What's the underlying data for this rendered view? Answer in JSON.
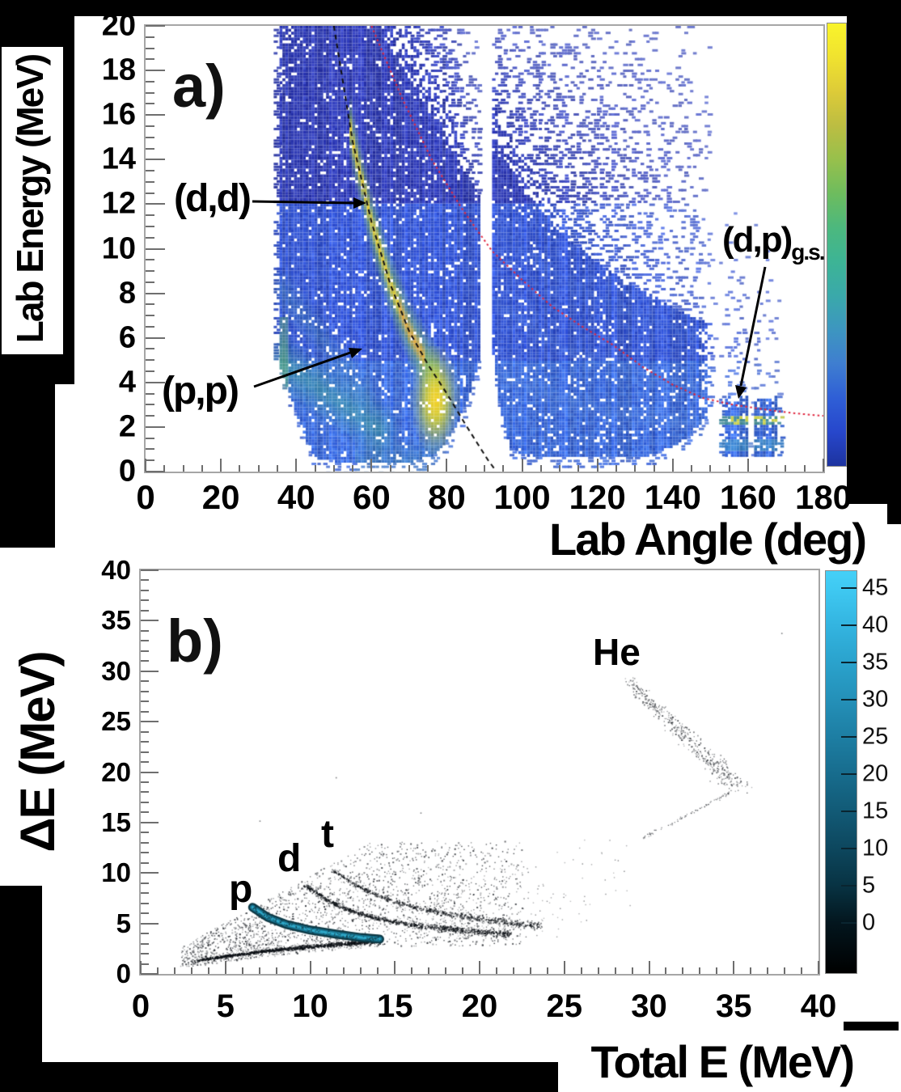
{
  "panel_a": {
    "label": "a)",
    "x_axis": {
      "title": "Lab Angle (deg)",
      "min": 0,
      "max": 180,
      "major_step": 20,
      "minor_step": 5,
      "ticks": [
        "0",
        "20",
        "40",
        "60",
        "80",
        "100",
        "120",
        "140",
        "160",
        "180"
      ]
    },
    "y_axis": {
      "title": "Lab Energy (MeV)",
      "min": 0,
      "max": 20,
      "major_step": 2,
      "minor_step": 0.5,
      "ticks": [
        "20",
        "18",
        "16",
        "14",
        "12",
        "10",
        "8",
        "6",
        "4",
        "2",
        "0"
      ]
    },
    "annotations": {
      "dd": "(d,d)",
      "pp": "(p,p)",
      "dp": "(d,p)",
      "dp_sub": "g.s."
    },
    "colorbar": {
      "colors": [
        "#f9f42b",
        "#f0e22f",
        "#ddcb38",
        "#bcbd42",
        "#97c04c",
        "#6dbc5e",
        "#4cb87e",
        "#3db495",
        "#3aa9aa",
        "#3d96c0",
        "#3f7ed0",
        "#2f5fd6",
        "#2747cc",
        "#1d339f"
      ]
    }
  },
  "panel_b": {
    "label": "b)",
    "x_axis": {
      "title": "Total E (MeV)",
      "min": 0,
      "max": 40,
      "major_step": 5,
      "minor_step": 1,
      "ticks": [
        "0",
        "5",
        "10",
        "15",
        "20",
        "25",
        "30",
        "35",
        "40"
      ]
    },
    "y_axis": {
      "title": "ΔE (MeV)",
      "min": 0,
      "max": 40,
      "major_step": 5,
      "minor_step": 1,
      "ticks": [
        "40",
        "35",
        "30",
        "25",
        "20",
        "15",
        "10",
        "5",
        "0"
      ]
    },
    "particles": {
      "p": "p",
      "d": "d",
      "t": "t",
      "he": "He"
    },
    "colorbar": {
      "labels": [
        "45",
        "40",
        "35",
        "30",
        "25",
        "20",
        "15",
        "10",
        "5",
        "0"
      ],
      "colors": [
        "#45d0f7",
        "#3fc9f2",
        "#33b4e0",
        "#2aa2cc",
        "#2490b8",
        "#1d7ea3",
        "#176c8d",
        "#125a76",
        "#0d475e",
        "#083343",
        "#03161e",
        "#000000"
      ]
    }
  },
  "chart_data": [
    {
      "type": "heatmap",
      "title": "deuteron-beam particle spectrum",
      "xlabel": "Lab Angle (deg)",
      "ylabel": "Lab Energy (MeV)",
      "xlim": [
        0,
        180
      ],
      "ylim": [
        0,
        20
      ],
      "grid": false,
      "colormap": "blue(low) to yellow(high)",
      "curves": {
        "dd_kinematic": {
          "style": "dashed-black",
          "label": "(d,d)",
          "points": [
            [
              50,
              20
            ],
            [
              55,
              14.8
            ],
            [
              60,
              11.2
            ],
            [
              65,
              8.4
            ],
            [
              70,
              6.3
            ],
            [
              75,
              4.8
            ],
            [
              80,
              3.5
            ],
            [
              85,
              2.1
            ],
            [
              88,
              1.3
            ],
            [
              91,
              0.5
            ],
            [
              93,
              0.05
            ]
          ]
        },
        "dp_gs_kinematic": {
          "style": "dotted-red",
          "label": "(d,p) g.s.",
          "points": [
            [
              60,
              20
            ],
            [
              68,
              16.8
            ],
            [
              76,
              14.0
            ],
            [
              84,
              11.8
            ],
            [
              92,
              9.9
            ],
            [
              100,
              8.6
            ],
            [
              108,
              7.4
            ],
            [
              116,
              6.5
            ],
            [
              124,
              5.7
            ],
            [
              132,
              4.7
            ],
            [
              140,
              3.9
            ],
            [
              148,
              3.3
            ],
            [
              156,
              3.0
            ],
            [
              164,
              2.8
            ],
            [
              172,
              2.62
            ],
            [
              180,
              2.5
            ]
          ]
        }
      },
      "regions": {
        "left_blob": {
          "theta_range": [
            34.2,
            89.3
          ],
          "bottom_edge": [
            [
              35,
              5.0
            ],
            [
              38,
              3.6
            ],
            [
              41,
              2.2
            ],
            [
              44,
              0.9
            ],
            [
              46,
              0.5
            ],
            [
              60,
              0.38
            ],
            [
              70,
              0.42
            ],
            [
              76,
              0.7
            ],
            [
              80,
              1.3
            ],
            [
              83,
              2.2
            ],
            [
              86,
              3.4
            ],
            [
              88,
              4.6
            ],
            [
              89.3,
              5.6
            ]
          ],
          "solid_top_start_theta": 58,
          "solid_top_slope": 0.28
        },
        "gap1_theta": [
          89.3,
          92.3
        ],
        "middle_blob": {
          "theta_range": [
            92.3,
            151.5
          ],
          "bottom_edge": [
            [
              92.3,
              5.4
            ],
            [
              93.5,
              3.6
            ],
            [
              95,
              2.2
            ],
            [
              97,
              1.1
            ],
            [
              100,
              0.75
            ],
            [
              110,
              0.6
            ],
            [
              125,
              0.6
            ],
            [
              135,
              0.75
            ],
            [
              142,
              1.3
            ],
            [
              147,
              2.0
            ],
            [
              151,
              2.9
            ]
          ],
          "top_edge": [
            [
              92,
              15
            ],
            [
              100,
              12.6
            ],
            [
              110,
              10.8
            ],
            [
              120,
              9.4
            ],
            [
              130,
              8.3
            ],
            [
              140,
              7.4
            ],
            [
              151,
              6.5
            ]
          ]
        },
        "gap2_theta": [
          151.5,
          152.5
        ],
        "right_blob": {
          "theta_range": [
            152.5,
            169
          ],
          "energy_range": [
            0.68,
            3.35
          ],
          "white_notch_theta": [
            160.2,
            161.4
          ],
          "stripes": [
            {
              "energy": [
                2.05,
                2.52
              ],
              "color": "green-yellow dashes"
            },
            {
              "energy": [
                0.95,
                1.38
              ],
              "color": "teal dashes"
            }
          ]
        }
      },
      "features": {
        "pp_band": {
          "from": [
            36,
            4.9
          ],
          "to": [
            62,
            1.9
          ],
          "width_mev": 1.35
        },
        "pp_band2": {
          "from": [
            36,
            8.2
          ],
          "to": [
            58,
            3.6
          ],
          "width_mev": 0.95
        },
        "green_column": {
          "theta": [
            35.2,
            37.9
          ],
          "energy": [
            2.2,
            6.9
          ]
        },
        "dd_ridge": {
          "theta": [
            54,
            78
          ],
          "width_mev": 0.65
        },
        "bright_spot": {
          "center": [
            77,
            3.2
          ],
          "sigma": [
            2.6,
            1.0
          ]
        },
        "middle_arcs": [
          {
            "points": [
              [
                93,
                4.4
              ],
              [
                110,
                3.2
              ],
              [
                130,
                2.5
              ],
              [
                148,
                2.1
              ]
            ],
            "width": 0.5,
            "strength": 0.28
          },
          {
            "points": [
              [
                93,
                7.6
              ],
              [
                110,
                5.6
              ],
              [
                130,
                4.4
              ],
              [
                148,
                3.7
              ]
            ],
            "width": 0.45,
            "strength": 0.2
          },
          {
            "points": [
              [
                93,
                11.0
              ],
              [
                110,
                8.6
              ],
              [
                130,
                7.0
              ],
              [
                148,
                6.0
              ]
            ],
            "width": 0.45,
            "strength": 0.12
          }
        ]
      }
    },
    {
      "type": "scatter",
      "title": "particle identification dE-E",
      "xlabel": "Total E (MeV)",
      "ylabel": "ΔE (MeV)",
      "xlim": [
        0,
        40
      ],
      "ylim": [
        0,
        40
      ],
      "grid": false,
      "zmax": 47,
      "wedge": {
        "x_range": [
          2.3,
          22.5
        ],
        "count": 2600
      },
      "right_cloud": {
        "x_range": [
          16,
          29
        ],
        "count": 330
      },
      "bands": {
        "p_low": {
          "points": [
            [
              3.2,
              1.35
            ],
            [
              5,
              1.8
            ],
            [
              7,
              2.25
            ],
            [
              9,
              2.6
            ],
            [
              11,
              2.9
            ],
            [
              13,
              3.15
            ],
            [
              14.2,
              3.35
            ]
          ],
          "width": 0.2,
          "count": 1050
        },
        "p_bright": {
          "points": [
            [
              6.6,
              6.6
            ],
            [
              7.5,
              5.6
            ],
            [
              8.6,
              4.9
            ],
            [
              10,
              4.35
            ],
            [
              11.5,
              3.95
            ],
            [
              13,
              3.6
            ],
            [
              14.1,
              3.45
            ]
          ],
          "style": "cyan-ridge",
          "count": 170
        },
        "d": {
          "points": [
            [
              9.7,
              8.8
            ],
            [
              11,
              7.3
            ],
            [
              12.5,
              6.2
            ],
            [
              14,
              5.5
            ],
            [
              16,
              4.9
            ],
            [
              18,
              4.5
            ],
            [
              20.5,
              4.15
            ],
            [
              21.8,
              4.0
            ]
          ],
          "width": 0.3,
          "count": 820
        },
        "t": {
          "points": [
            [
              11.3,
              10.3
            ],
            [
              12.5,
              9.0
            ],
            [
              14,
              7.8
            ],
            [
              16,
              6.7
            ],
            [
              18,
              6.0
            ],
            [
              20,
              5.5
            ],
            [
              22.3,
              5.0
            ],
            [
              23.6,
              4.75
            ]
          ],
          "width": 0.32,
          "count": 640
        },
        "he": {
          "from": [
            28.6,
            29.4
          ],
          "to": [
            35.2,
            18.5
          ],
          "width": 0.5,
          "count": 430
        },
        "he_faint": {
          "from": [
            29.6,
            13.5
          ],
          "to": [
            35.1,
            18.3
          ],
          "width": 0.15,
          "count": 85
        }
      },
      "stray_points": [
        [
          37.8,
          33.8
        ],
        [
          11.5,
          19.5
        ],
        [
          7.0,
          15.2
        ],
        [
          16.5,
          16.0
        ]
      ]
    }
  ]
}
